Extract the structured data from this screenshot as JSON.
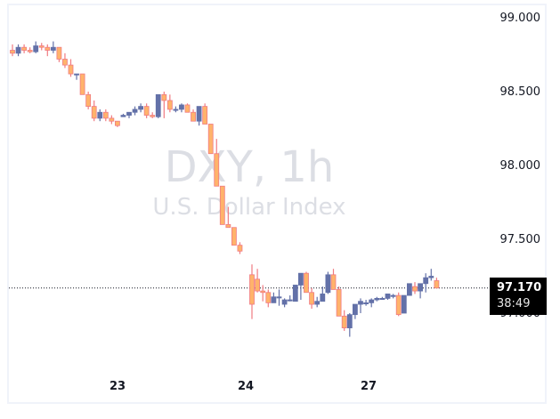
{
  "watermark": {
    "title": "DXY, 1h",
    "subtitle": "U.S. Dollar Index"
  },
  "price_axis": {
    "labels": [
      "99.000",
      "98.500",
      "98.000",
      "97.500",
      "97.000"
    ]
  },
  "time_axis": {
    "labels": [
      "23",
      "24",
      "27"
    ]
  },
  "last_price": {
    "value": "97.170",
    "countdown": "38:49"
  },
  "colors": {
    "up": "#6371a8",
    "down_body": "#ffb36b",
    "down_border": "#f07b82",
    "last_line": "#131722"
  },
  "chart_data": {
    "type": "candlestick",
    "title": "DXY, 1h",
    "subtitle": "U.S. Dollar Index",
    "xlabel": "",
    "ylabel": "",
    "ylim": [
      96.75,
      99.1
    ],
    "x_tick_labels": [
      "23",
      "24",
      "27"
    ],
    "y_tick_labels": [
      "99.000",
      "98.500",
      "98.000",
      "97.500"
    ],
    "last_price": 97.17,
    "series": [
      {
        "name": "DXY 1h",
        "ohlc": [
          [
            98.78,
            98.82,
            98.74,
            98.76
          ],
          [
            98.76,
            98.82,
            98.74,
            98.8
          ],
          [
            98.8,
            98.82,
            98.76,
            98.78
          ],
          [
            98.78,
            98.8,
            98.76,
            98.77
          ],
          [
            98.77,
            98.84,
            98.76,
            98.81
          ],
          [
            98.81,
            98.83,
            98.78,
            98.8
          ],
          [
            98.8,
            98.82,
            98.74,
            98.78
          ],
          [
            98.78,
            98.84,
            98.76,
            98.8
          ],
          [
            98.8,
            98.8,
            98.7,
            98.72
          ],
          [
            98.72,
            98.76,
            98.66,
            98.68
          ],
          [
            98.68,
            98.72,
            98.6,
            98.62
          ],
          [
            98.62,
            98.62,
            98.58,
            98.62
          ],
          [
            98.62,
            98.62,
            98.48,
            98.48
          ],
          [
            98.48,
            98.5,
            98.38,
            98.4
          ],
          [
            98.4,
            98.44,
            98.3,
            98.32
          ],
          [
            98.32,
            98.38,
            98.3,
            98.36
          ],
          [
            98.36,
            98.38,
            98.3,
            98.32
          ],
          [
            98.32,
            98.34,
            98.28,
            98.3
          ],
          [
            98.3,
            98.3,
            98.26,
            98.27
          ],
          [
            98.33,
            98.35,
            98.33,
            98.34
          ],
          [
            98.34,
            98.36,
            98.32,
            98.36
          ],
          [
            98.36,
            98.4,
            98.34,
            98.38
          ],
          [
            98.38,
            98.42,
            98.36,
            98.4
          ],
          [
            98.4,
            98.42,
            98.32,
            98.34
          ],
          [
            98.34,
            98.36,
            98.32,
            98.33
          ],
          [
            98.33,
            98.48,
            98.32,
            98.48
          ],
          [
            98.48,
            98.5,
            98.32,
            98.44
          ],
          [
            98.44,
            98.48,
            98.36,
            98.38
          ],
          [
            98.38,
            98.4,
            98.36,
            98.38
          ],
          [
            98.38,
            98.42,
            98.36,
            98.41
          ],
          [
            98.41,
            98.42,
            98.36,
            98.36
          ],
          [
            98.36,
            98.38,
            98.3,
            98.3
          ],
          [
            98.3,
            98.4,
            98.27,
            98.4
          ],
          [
            98.4,
            98.42,
            98.28,
            98.28
          ],
          [
            98.28,
            98.28,
            98.08,
            98.08
          ],
          [
            98.08,
            98.18,
            97.86,
            97.86
          ],
          [
            97.86,
            97.86,
            97.6,
            97.6
          ],
          [
            97.6,
            97.72,
            97.58,
            97.58
          ],
          [
            97.58,
            97.58,
            97.46,
            97.46
          ],
          [
            97.46,
            97.48,
            97.4,
            97.42
          ],
          [
            97.26,
            97.33,
            96.96,
            97.06
          ],
          [
            97.23,
            97.3,
            97.14,
            97.15
          ],
          [
            97.15,
            97.19,
            97.08,
            97.14
          ],
          [
            97.14,
            97.16,
            97.04,
            97.07
          ],
          [
            97.07,
            97.14,
            97.07,
            97.11
          ],
          [
            97.11,
            97.16,
            97.05,
            97.11
          ],
          [
            97.06,
            97.1,
            97.04,
            97.09
          ],
          [
            97.09,
            97.12,
            97.08,
            97.09
          ],
          [
            97.08,
            97.17,
            97.08,
            97.19
          ],
          [
            97.19,
            97.27,
            97.09,
            97.27
          ],
          [
            97.27,
            97.28,
            97.14,
            97.14
          ],
          [
            97.14,
            97.17,
            97.03,
            97.06
          ],
          [
            97.06,
            97.11,
            97.04,
            97.08
          ],
          [
            97.08,
            97.18,
            97.08,
            97.13
          ],
          [
            97.14,
            97.28,
            97.13,
            97.26
          ],
          [
            97.26,
            97.3,
            97.16,
            97.16
          ],
          [
            97.16,
            97.18,
            96.98,
            96.98
          ],
          [
            96.98,
            97.02,
            96.88,
            96.9
          ],
          [
            96.9,
            97.0,
            96.84,
            96.99
          ],
          [
            96.99,
            97.06,
            96.96,
            97.06
          ],
          [
            97.06,
            97.1,
            97.0,
            97.08
          ],
          [
            97.07,
            97.09,
            97.05,
            97.07
          ],
          [
            97.07,
            97.1,
            97.04,
            97.09
          ],
          [
            97.09,
            97.11,
            97.08,
            97.1
          ],
          [
            97.1,
            97.11,
            97.09,
            97.1
          ],
          [
            97.1,
            97.13,
            97.09,
            97.13
          ],
          [
            97.12,
            97.13,
            97.1,
            97.12
          ],
          [
            97.12,
            97.14,
            96.98,
            96.99
          ],
          [
            97.0,
            97.12,
            97.0,
            97.12
          ],
          [
            97.12,
            97.18,
            97.12,
            97.2
          ],
          [
            97.18,
            97.21,
            97.13,
            97.15
          ],
          [
            97.15,
            97.2,
            97.1,
            97.2
          ],
          [
            97.2,
            97.27,
            97.14,
            97.24
          ],
          [
            97.24,
            97.3,
            97.22,
            97.25
          ],
          [
            97.22,
            97.24,
            97.17,
            97.17
          ]
        ]
      }
    ]
  }
}
